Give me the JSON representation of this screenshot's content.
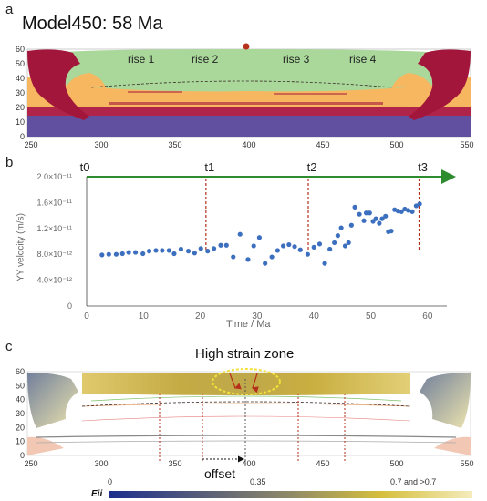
{
  "panels": {
    "a": {
      "letter": "a",
      "title": "Model450: 58 Ma",
      "rise_labels": [
        "rise 1",
        "rise 2",
        "rise 3",
        "rise 4"
      ],
      "y_ticks": [
        "0",
        "10",
        "20",
        "30",
        "40",
        "50",
        "60"
      ],
      "x_ticks": [
        "250",
        "300",
        "350",
        "400",
        "450",
        "500",
        "550"
      ]
    },
    "b": {
      "letter": "b",
      "time_markers": [
        "t0",
        "t1",
        "t2",
        "t3"
      ]
    },
    "c": {
      "letter": "c",
      "annotation_top": "High strain zone",
      "annotation_offset": "offset",
      "y_ticks": [
        "0",
        "10",
        "20",
        "30",
        "40",
        "50",
        "60"
      ],
      "x_ticks": [
        "250",
        "300",
        "350",
        "400",
        "450",
        "500",
        "550"
      ],
      "colorbar_label": "Eii",
      "colorbar_ticks": [
        "0",
        "0.35",
        "0.7 and >0.7"
      ]
    }
  },
  "colors": {
    "lithosphere_red": "#a3163b",
    "orange": "#f7b760",
    "green": "#a9d89a",
    "purple": "#6150a0",
    "scatter_blue": "#3d6fbf",
    "marker_red": "#b5301b",
    "arrow_green": "#2e8b2e"
  },
  "chart_data": {
    "type": "scatter",
    "xlabel": "Time / Ma",
    "ylabel": "YY velocity  (m/s)",
    "xlim": [
      0,
      65
    ],
    "ylim": [
      0,
      2e-11
    ],
    "x_ticks": [
      0,
      10,
      20,
      30,
      40,
      50,
      60
    ],
    "y_ticks": [
      0,
      4e-12,
      8e-12,
      1.2e-11,
      1.6e-11,
      2e-11
    ],
    "y_tick_labels": [
      "0",
      "4.0×10⁻¹²",
      "8.0×10⁻¹²",
      "1.2×10⁻¹¹",
      "1.6×10⁻¹¹",
      "2.0×10⁻¹¹"
    ],
    "markers": [
      {
        "label": "t0",
        "x": 0
      },
      {
        "label": "t1",
        "x": 21
      },
      {
        "label": "t2",
        "x": 39
      },
      {
        "label": "t3",
        "x": 58.5
      }
    ],
    "grid": false,
    "series": [
      {
        "points": [
          [
            2.7,
            7.9e-12
          ],
          [
            3.9,
            8e-12
          ],
          [
            5.2,
            8e-12
          ],
          [
            6.3,
            8.1e-12
          ],
          [
            7.4,
            8.3e-12
          ],
          [
            8.6,
            8.3e-12
          ],
          [
            9.9,
            8.1e-12
          ],
          [
            11.0,
            8.5e-12
          ],
          [
            12.2,
            8.6e-12
          ],
          [
            13.3,
            8.6e-12
          ],
          [
            14.5,
            8.6e-12
          ],
          [
            15.4,
            8.1e-12
          ],
          [
            16.6,
            8.8e-12
          ],
          [
            17.9,
            8.5e-12
          ],
          [
            19.0,
            8.2e-12
          ],
          [
            20.1,
            8.9e-12
          ],
          [
            21.3,
            8.5e-12
          ],
          [
            22.4,
            8.9e-12
          ],
          [
            23.6,
            9.4e-12
          ],
          [
            24.6,
            9.4e-12
          ],
          [
            25.8,
            7.6e-12
          ],
          [
            27.0,
            1.11e-11
          ],
          [
            28.4,
            7.2e-12
          ],
          [
            29.4,
            9.3e-12
          ],
          [
            30.4,
            1.06e-11
          ],
          [
            31.4,
            6.6e-12
          ],
          [
            32.6,
            7.6e-12
          ],
          [
            33.6,
            8.6e-12
          ],
          [
            34.6,
            9.3e-12
          ],
          [
            35.6,
            9.5e-12
          ],
          [
            36.6,
            9.2e-12
          ],
          [
            37.6,
            8.7e-12
          ],
          [
            38.9,
            8e-12
          ],
          [
            40.0,
            9.1e-12
          ],
          [
            41.0,
            9.6e-12
          ],
          [
            41.9,
            6.6e-12
          ],
          [
            42.8,
            8.8e-12
          ],
          [
            43.6,
            9.8e-12
          ],
          [
            44.2,
            1.09e-11
          ],
          [
            44.8,
            1.21e-11
          ],
          [
            45.5,
            9.3e-12
          ],
          [
            46.1,
            9.8e-12
          ],
          [
            46.6,
            1.25e-11
          ],
          [
            47.2,
            1.53e-11
          ],
          [
            48.0,
            1.42e-11
          ],
          [
            48.8,
            1.32e-11
          ],
          [
            49.2,
            1.44e-11
          ],
          [
            49.8,
            1.44e-11
          ],
          [
            50.4,
            1.31e-11
          ],
          [
            50.9,
            1.35e-11
          ],
          [
            51.5,
            1.28e-11
          ],
          [
            52.0,
            1.35e-11
          ],
          [
            52.6,
            1.39e-11
          ],
          [
            53.1,
            1.15e-11
          ],
          [
            53.6,
            1.16e-11
          ],
          [
            54.2,
            1.49e-11
          ],
          [
            54.8,
            1.47e-11
          ],
          [
            55.4,
            1.46e-11
          ],
          [
            56.0,
            1.5e-11
          ],
          [
            56.6,
            1.48e-11
          ],
          [
            57.3,
            1.46e-11
          ],
          [
            58.0,
            1.55e-11
          ],
          [
            58.6,
            1.58e-11
          ]
        ]
      }
    ]
  }
}
